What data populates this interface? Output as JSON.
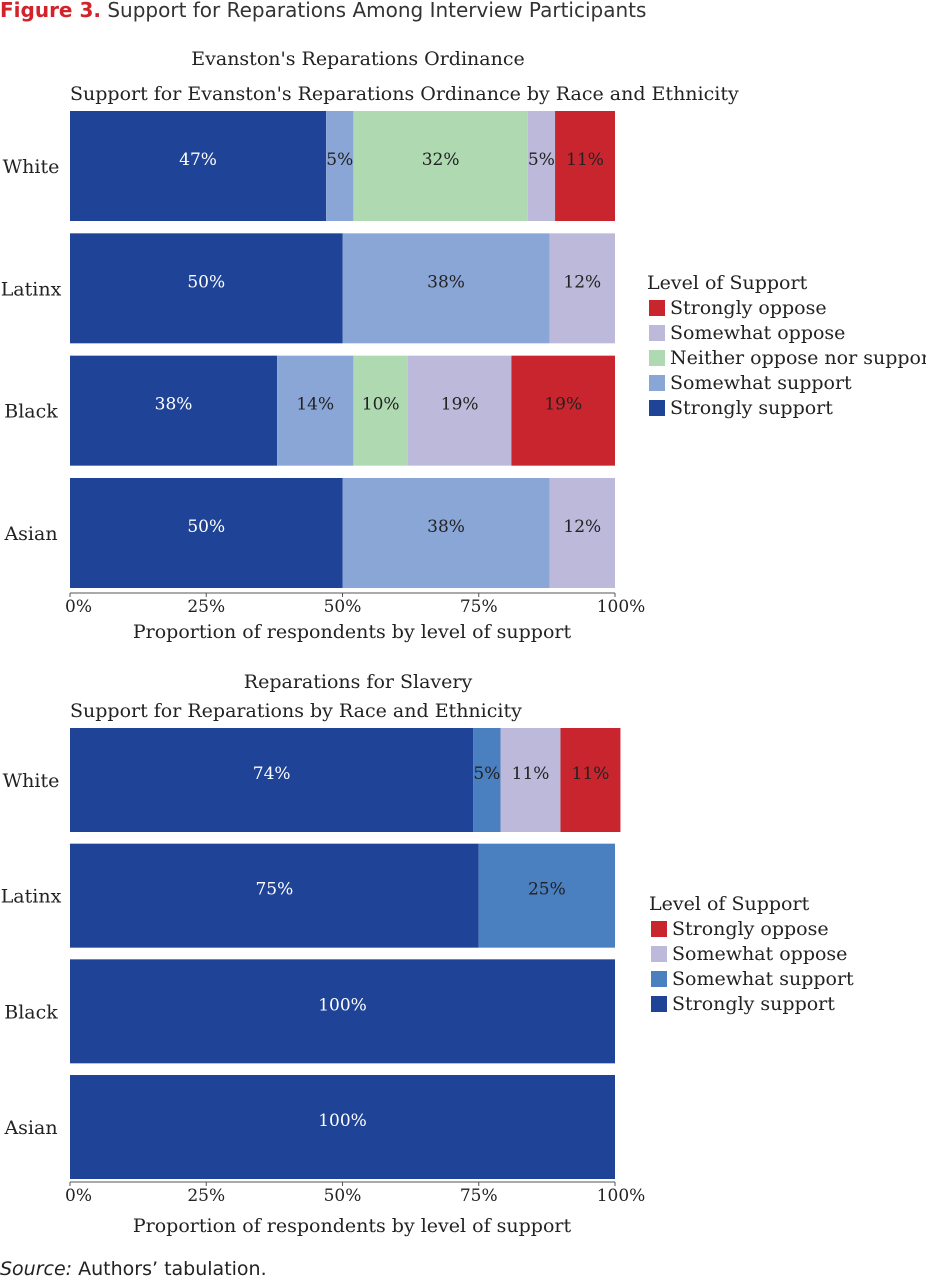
{
  "figure": {
    "number": "Figure 3.",
    "title": "Support for Reparations Among Interview Participants"
  },
  "source": {
    "label": "Source:",
    "text": "Authors’ tabulation."
  },
  "colors": {
    "strongly_oppose": "#c9252e",
    "somewhat_oppose": "#bdb9db",
    "neither": "#aed9b1",
    "somewhat_support_chart1": "#8aa6d6",
    "somewhat_support_chart2": "#4a7fc0",
    "strongly_support": "#1f4397"
  },
  "chart_data": [
    {
      "type": "bar",
      "orientation": "horizontal",
      "stacked": true,
      "title": "Evanston's Reparations Ordinance",
      "subtitle": "Support for Evanston's Reparations Ordinance by Race and Ethnicity",
      "xlabel": "Proportion of respondents by level of support",
      "ylabel": "",
      "xlim": [
        0,
        100
      ],
      "xticks": [
        "0%",
        "25%",
        "50%",
        "75%",
        "100%"
      ],
      "categories": [
        "White",
        "Latinx",
        "Black",
        "Asian"
      ],
      "legend_title": "Level of Support",
      "legend_position": "right",
      "legend": [
        "Strongly oppose",
        "Somewhat oppose",
        "Neither oppose nor support",
        "Somewhat support",
        "Strongly support"
      ],
      "series": [
        {
          "name": "Strongly support",
          "color": "#1f4397",
          "values": [
            47,
            50,
            38,
            50
          ],
          "labels": [
            "47%",
            "50%",
            "38%",
            "50%"
          ]
        },
        {
          "name": "Somewhat support",
          "color": "#8aa6d6",
          "values": [
            5,
            38,
            14,
            38
          ],
          "labels": [
            "5%",
            "38%",
            "14%",
            "38%"
          ]
        },
        {
          "name": "Neither oppose nor support",
          "color": "#aed9b1",
          "values": [
            32,
            0,
            10,
            0
          ],
          "labels": [
            "32%",
            "",
            "10%",
            ""
          ]
        },
        {
          "name": "Somewhat oppose",
          "color": "#bdb9db",
          "values": [
            5,
            12,
            19,
            12
          ],
          "labels": [
            "5%",
            "12%",
            "19%",
            "12%"
          ]
        },
        {
          "name": "Strongly oppose",
          "color": "#c9252e",
          "values": [
            11,
            0,
            19,
            0
          ],
          "labels": [
            "11%",
            "",
            "19%",
            ""
          ]
        }
      ]
    },
    {
      "type": "bar",
      "orientation": "horizontal",
      "stacked": true,
      "title": "Reparations for Slavery",
      "subtitle": "Support for Reparations by Race and Ethnicity",
      "xlabel": "Proportion of respondents by level of support",
      "ylabel": "",
      "xlim": [
        0,
        100
      ],
      "xticks": [
        "0%",
        "25%",
        "50%",
        "75%",
        "100%"
      ],
      "categories": [
        "White",
        "Latinx",
        "Black",
        "Asian"
      ],
      "legend_title": "Level of Support",
      "legend_position": "right",
      "legend": [
        "Strongly oppose",
        "Somewhat oppose",
        "Somewhat support",
        "Strongly support"
      ],
      "series": [
        {
          "name": "Strongly support",
          "color": "#1f4397",
          "values": [
            74,
            75,
            100,
            100
          ],
          "labels": [
            "74%",
            "75%",
            "100%",
            "100%"
          ]
        },
        {
          "name": "Somewhat support",
          "color": "#4a7fc0",
          "values": [
            5,
            25,
            0,
            0
          ],
          "labels": [
            "5%",
            "25%",
            "",
            ""
          ]
        },
        {
          "name": "Somewhat oppose",
          "color": "#bdb9db",
          "values": [
            11,
            0,
            0,
            0
          ],
          "labels": [
            "11%",
            "",
            "",
            ""
          ]
        },
        {
          "name": "Strongly oppose",
          "color": "#c9252e",
          "values": [
            11,
            0,
            0,
            0
          ],
          "labels": [
            "11%",
            "",
            "",
            ""
          ]
        }
      ]
    }
  ]
}
